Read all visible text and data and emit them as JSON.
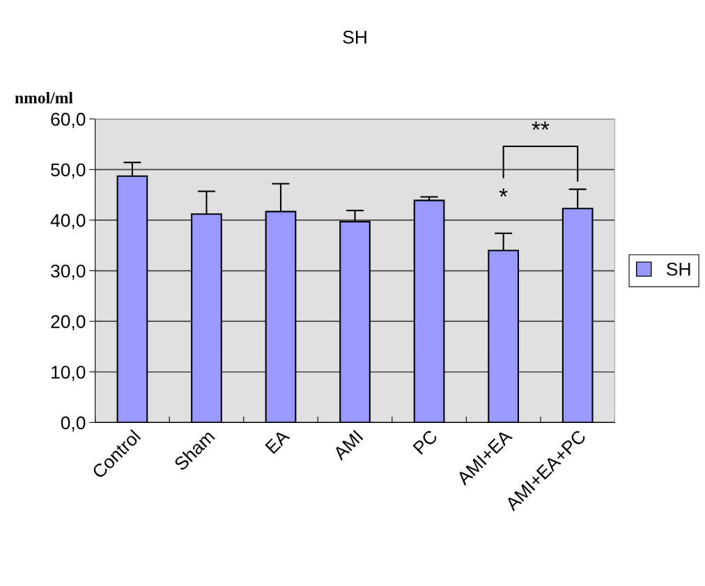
{
  "chart_data": {
    "type": "bar",
    "title": "SH",
    "ylabel": "nmol/ml",
    "categories": [
      "Control",
      "Sham",
      "EA",
      "AMI",
      "PC",
      "AMI+EA",
      "AMI+EA+PC"
    ],
    "series": [
      {
        "name": "SH",
        "color": "#9999ff",
        "values": [
          48.7,
          41.2,
          41.7,
          39.7,
          43.9,
          34.0,
          42.3
        ],
        "errors": [
          2.7,
          4.5,
          5.5,
          2.2,
          0.7,
          3.4,
          3.8
        ]
      }
    ],
    "ylim": [
      0,
      60
    ],
    "yticks": [
      {
        "value": 0,
        "label": "0,0"
      },
      {
        "value": 10,
        "label": "10,0"
      },
      {
        "value": 20,
        "label": "20,0"
      },
      {
        "value": 30,
        "label": "30,0"
      },
      {
        "value": 40,
        "label": "40,0"
      },
      {
        "value": 50,
        "label": "50,0"
      },
      {
        "value": 60,
        "label": "60,0"
      }
    ],
    "grid": "y",
    "legend": "right",
    "annotations": [
      "*",
      "**"
    ]
  }
}
